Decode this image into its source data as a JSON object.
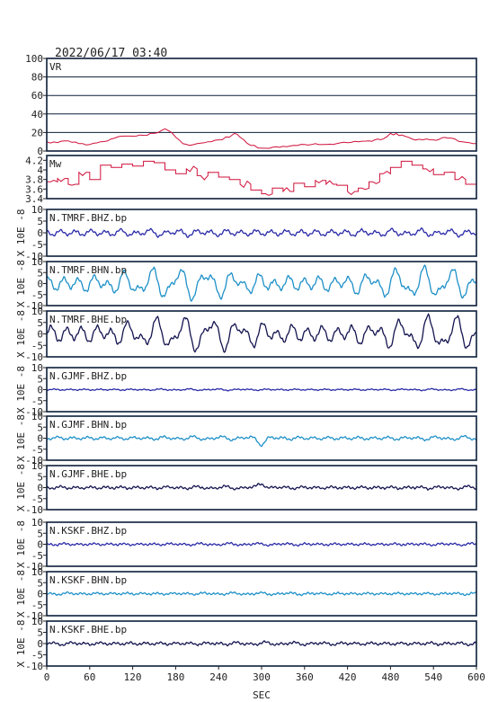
{
  "header": {
    "datetime": "2022/06/17 03:40"
  },
  "colors": {
    "red": "#d0103a",
    "blue": "#2a2aa8",
    "cyan": "#1e90c8",
    "navy": "#141450",
    "frame": "#0b1e3a"
  },
  "chart_data": {
    "type": "line",
    "xlabel": "SEC",
    "xlim": [
      0,
      600
    ],
    "xticks": [
      0,
      60,
      120,
      180,
      240,
      300,
      360,
      420,
      480,
      540,
      600
    ],
    "panels": [
      {
        "label": "VR",
        "ylim": [
          0,
          100
        ],
        "yticks": [
          0,
          20,
          40,
          60,
          80,
          100
        ],
        "ylabel": "",
        "grid": true,
        "color": "red",
        "step": false,
        "x": [
          0,
          15,
          30,
          45,
          60,
          75,
          90,
          105,
          120,
          135,
          150,
          160,
          165,
          170,
          180,
          190,
          200,
          210,
          225,
          240,
          255,
          262,
          270,
          285,
          300,
          315,
          330,
          345,
          360,
          375,
          390,
          405,
          420,
          435,
          450,
          470,
          480,
          500,
          510,
          525,
          540,
          560,
          570,
          580,
          590,
          600
        ],
        "y": [
          10,
          9,
          11,
          8,
          7,
          10,
          13,
          16,
          16,
          17,
          19,
          22,
          24,
          22,
          15,
          8,
          6,
          8,
          10,
          12,
          15,
          19,
          15,
          6,
          3,
          4,
          5,
          6,
          7,
          8,
          7,
          8,
          9,
          10,
          11,
          13,
          19,
          16,
          13,
          12,
          12,
          14,
          13,
          10,
          9,
          8
        ]
      },
      {
        "label": "Mw",
        "ylim": [
          3.4,
          4.3
        ],
        "yticks": [
          3.4,
          3.6,
          3.8,
          4.0,
          4.2
        ],
        "ylabel": "",
        "grid": false,
        "color": "red",
        "step": true,
        "x": [
          0,
          15,
          30,
          45,
          60,
          75,
          90,
          105,
          120,
          135,
          150,
          165,
          180,
          195,
          210,
          225,
          240,
          255,
          270,
          285,
          300,
          315,
          330,
          345,
          360,
          375,
          390,
          405,
          420,
          435,
          450,
          465,
          480,
          495,
          510,
          525,
          540,
          555,
          570,
          585,
          600
        ],
        "y": [
          3.75,
          3.82,
          3.7,
          3.95,
          3.8,
          4.1,
          4.05,
          4.12,
          4.08,
          4.18,
          4.15,
          4.0,
          3.92,
          4.02,
          3.88,
          3.95,
          3.85,
          3.8,
          3.7,
          3.58,
          3.5,
          3.62,
          3.55,
          3.72,
          3.65,
          3.78,
          3.7,
          3.68,
          3.55,
          3.62,
          3.75,
          3.92,
          4.05,
          4.18,
          4.1,
          4.02,
          3.9,
          3.95,
          3.8,
          3.7,
          3.85
        ]
      },
      {
        "label": "N.TMRF.BHZ.bp",
        "ylim": [
          -10,
          10
        ],
        "yticks": [
          -10,
          -5,
          0,
          5,
          10
        ],
        "ylabel": "X 10E -8",
        "color": "blue",
        "amp": [
          0.6,
          1.0,
          0.4
        ],
        "seed": 1
      },
      {
        "label": "N.TMRF.BHN.bp",
        "ylim": [
          -10,
          10
        ],
        "yticks": [
          -10,
          -5,
          0,
          5,
          10
        ],
        "ylabel": "X 10E -8",
        "color": "cyan",
        "amp": [
          4.8,
          2.6,
          0.6
        ],
        "seed": 2
      },
      {
        "label": "N.TMRF.BHE.bp",
        "ylim": [
          -10,
          10
        ],
        "yticks": [
          -10,
          -5,
          0,
          5,
          10
        ],
        "ylabel": "X 10E -8",
        "color": "navy",
        "amp": [
          5.0,
          2.8,
          0.6
        ],
        "seed": 3
      },
      {
        "label": "N.GJMF.BHZ.bp",
        "ylim": [
          -10,
          10
        ],
        "yticks": [
          -10,
          -5,
          0,
          5,
          10
        ],
        "ylabel": "X 10E -8",
        "color": "blue",
        "amp": [
          0.2,
          0.2,
          0.15
        ],
        "seed": 4
      },
      {
        "label": "N.GJMF.BHN.bp",
        "ylim": [
          -10,
          10
        ],
        "yticks": [
          -10,
          -5,
          0,
          5,
          10
        ],
        "ylabel": "X 10E -8",
        "color": "cyan",
        "amp": [
          0.5,
          0.5,
          0.3
        ],
        "seed": 5,
        "event": {
          "x": 300,
          "v": -2.5
        }
      },
      {
        "label": "N.GJMF.BHE.bp",
        "ylim": [
          -10,
          10
        ],
        "yticks": [
          -10,
          -5,
          0,
          5,
          10
        ],
        "ylabel": "X 10E -8",
        "color": "navy",
        "amp": [
          0.4,
          0.4,
          0.35
        ],
        "seed": 6,
        "event": {
          "x": 300,
          "v": 2.0
        }
      },
      {
        "label": "N.KSKF.BHZ.bp",
        "ylim": [
          -10,
          10
        ],
        "yticks": [
          -10,
          -5,
          0,
          5,
          10
        ],
        "ylabel": "X 10E -8",
        "color": "blue",
        "amp": [
          0.3,
          0.3,
          0.3
        ],
        "seed": 7
      },
      {
        "label": "N.KSKF.BHN.bp",
        "ylim": [
          -10,
          10
        ],
        "yticks": [
          -10,
          -5,
          0,
          5,
          10
        ],
        "ylabel": "X 10E -8",
        "color": "cyan",
        "amp": [
          0.3,
          0.3,
          0.3
        ],
        "seed": 8
      },
      {
        "label": "N.KSKF.BHE.bp",
        "ylim": [
          -10,
          10
        ],
        "yticks": [
          -10,
          -5,
          0,
          5,
          10
        ],
        "ylabel": "X 10E -8",
        "color": "navy",
        "amp": [
          0.4,
          0.4,
          0.35
        ],
        "seed": 9
      }
    ]
  }
}
